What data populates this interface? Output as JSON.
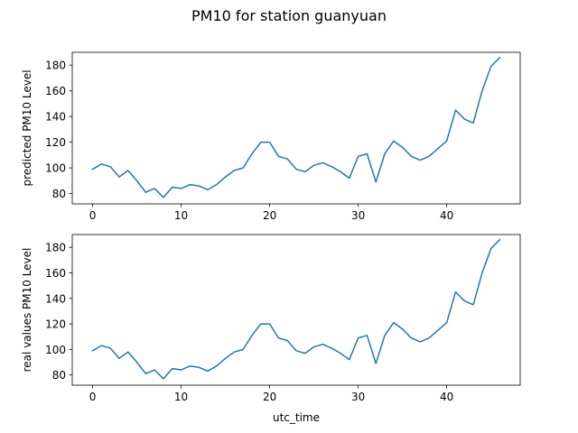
{
  "title": "PM10 for station guanyuan",
  "colors": {
    "series": "#1f77b4"
  },
  "chart_data": [
    {
      "type": "line",
      "title": "",
      "xlabel": "",
      "ylabel": "predicted PM10 Level",
      "xlim": [
        -2.3,
        48.3
      ],
      "ylim": [
        72,
        190
      ],
      "xticks": [
        "0",
        "10",
        "20",
        "30",
        "40"
      ],
      "yticks": [
        "80",
        "100",
        "120",
        "140",
        "160",
        "180"
      ],
      "grid": false,
      "series": [
        {
          "x": [
            0,
            1,
            2,
            3,
            4,
            5,
            6,
            7,
            8,
            9,
            10,
            11,
            12,
            13,
            14,
            15,
            16,
            17,
            18,
            19,
            20,
            21,
            22,
            23,
            24,
            25,
            26,
            27,
            28,
            29,
            30,
            31,
            32,
            33,
            34,
            35,
            36,
            37,
            38,
            39,
            40,
            41,
            42,
            43,
            44,
            45,
            46
          ],
          "values": [
            99,
            103,
            101,
            93,
            98,
            90,
            81,
            84,
            77,
            85,
            84,
            87,
            86,
            83,
            87,
            93,
            98,
            100,
            111,
            120,
            120,
            109,
            107,
            99,
            97,
            102,
            104,
            101,
            97,
            92,
            109,
            111,
            89,
            111,
            121,
            116,
            109,
            106,
            109,
            115,
            121,
            145,
            138,
            135,
            160,
            179,
            186
          ]
        }
      ]
    },
    {
      "type": "line",
      "title": "",
      "xlabel": "utc_time",
      "ylabel": "real values PM10 Level",
      "xlim": [
        -2.3,
        48.3
      ],
      "ylim": [
        72,
        190
      ],
      "xticks": [
        "0",
        "10",
        "20",
        "30",
        "40"
      ],
      "yticks": [
        "80",
        "100",
        "120",
        "140",
        "160",
        "180"
      ],
      "grid": false,
      "series": [
        {
          "x": [
            0,
            1,
            2,
            3,
            4,
            5,
            6,
            7,
            8,
            9,
            10,
            11,
            12,
            13,
            14,
            15,
            16,
            17,
            18,
            19,
            20,
            21,
            22,
            23,
            24,
            25,
            26,
            27,
            28,
            29,
            30,
            31,
            32,
            33,
            34,
            35,
            36,
            37,
            38,
            39,
            40,
            41,
            42,
            43,
            44,
            45,
            46
          ],
          "values": [
            99,
            103,
            101,
            93,
            98,
            90,
            81,
            84,
            77,
            85,
            84,
            87,
            86,
            83,
            87,
            93,
            98,
            100,
            111,
            120,
            120,
            109,
            107,
            99,
            97,
            102,
            104,
            101,
            97,
            92,
            109,
            111,
            89,
            111,
            121,
            116,
            109,
            106,
            109,
            115,
            121,
            145,
            138,
            135,
            160,
            179,
            186
          ]
        }
      ]
    }
  ]
}
